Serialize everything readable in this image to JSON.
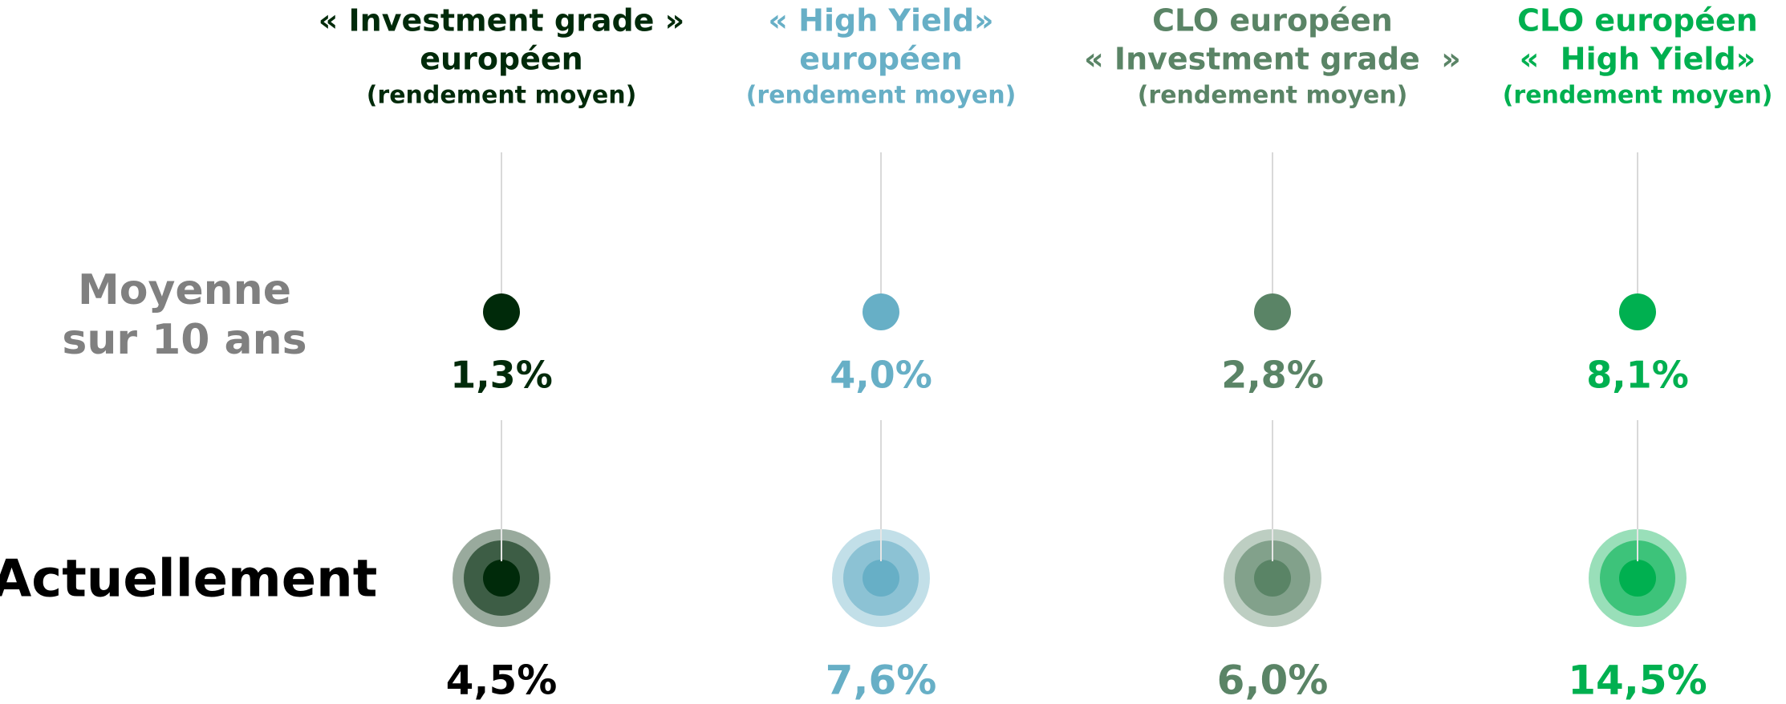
{
  "rows": [
    "Moyenne",
    "sur 10 ans",
    "Actuellement"
  ],
  "columns": [
    {
      "title": [
        "« Investment grade »",
        "européen"
      ],
      "subtitle": "(rendement moyen)",
      "average": "1,3%",
      "current": "4,5%",
      "color": "#002a0a",
      "current_color": "#000000"
    },
    {
      "title": [
        "« High Yield»",
        "européen"
      ],
      "subtitle": "(rendement moyen)",
      "average": "4,0%",
      "current": "7,6%",
      "color": "#67afc6",
      "current_color": "#67afc6"
    },
    {
      "title": [
        "CLO européen",
        "« Investment grade  »"
      ],
      "subtitle": "(rendement moyen)",
      "average": "2,8%",
      "current": "6,0%",
      "color": "#5a8466",
      "current_color": "#5a8466"
    },
    {
      "title": [
        "CLO européen",
        "«  High Yield»"
      ],
      "subtitle": "(rendement moyen)",
      "average": "8,1%",
      "current": "14,5%",
      "color": "#00b050",
      "current_color": "#00b050"
    }
  ]
}
